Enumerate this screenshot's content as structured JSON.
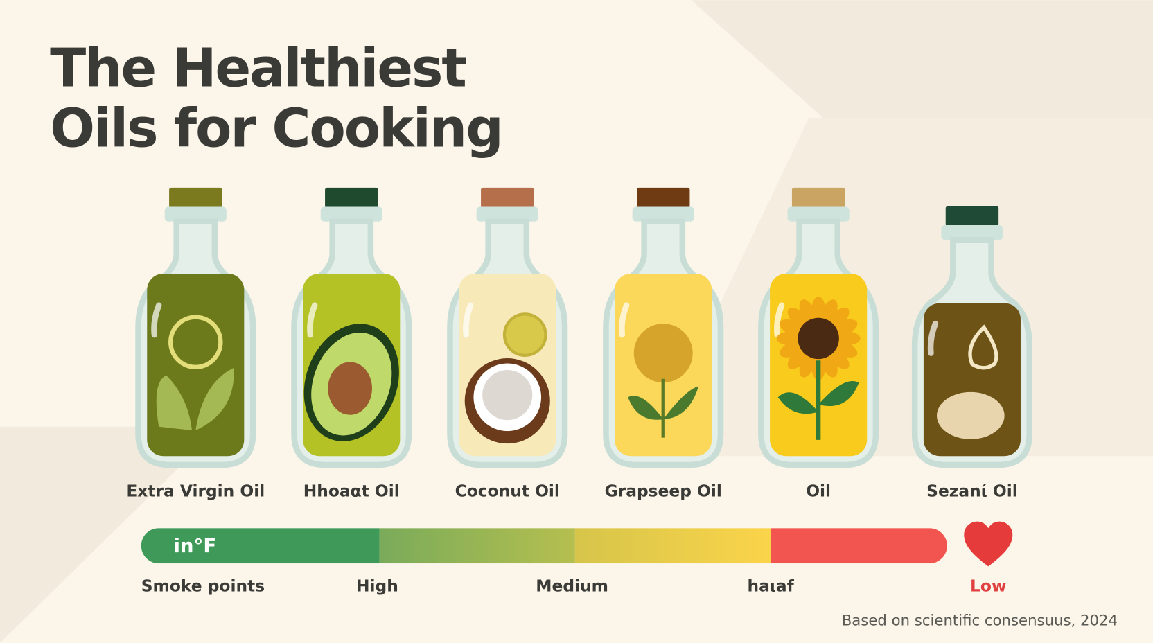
{
  "title": {
    "line1": "The Healthiest",
    "line2": "Oils for Cooking"
  },
  "bottles": [
    {
      "label": "Extra Virgin Oil"
    },
    {
      "label": "Hhoaαt Oil"
    },
    {
      "label": "Coconut Oil"
    },
    {
      "label": "Grapseep Oil"
    },
    {
      "label": "Oil"
    },
    {
      "label": "Sezanί Oil"
    }
  ],
  "scale": {
    "unit": "in°F",
    "caption": "Smoke points",
    "levels": [
      "High",
      "Medium",
      "haιaf",
      "Low"
    ]
  },
  "footnote": "Based on scientific consensuus, 2024"
}
